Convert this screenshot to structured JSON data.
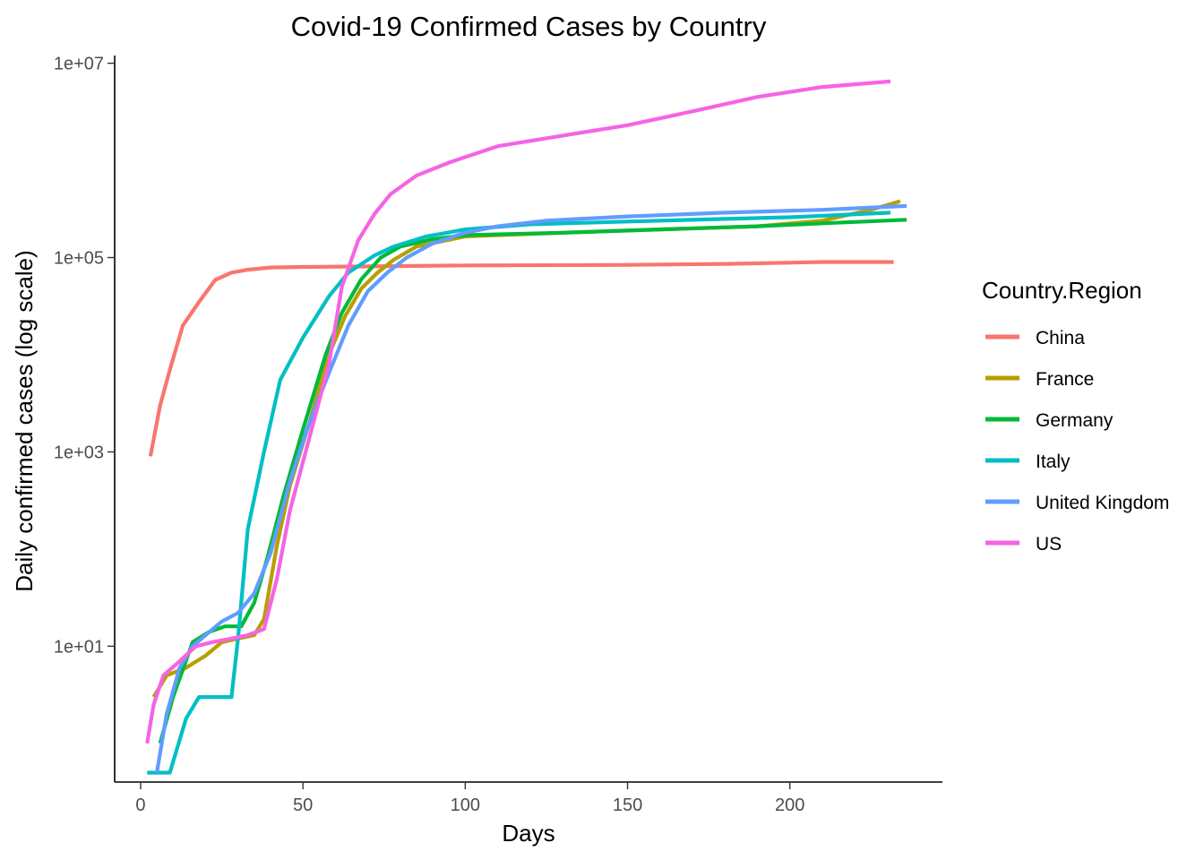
{
  "chart_data": {
    "type": "line",
    "title": "Covid-19 Confirmed Cases by Country",
    "xlabel": "Days",
    "ylabel": "Daily confirmed cases (log scale)",
    "y_scale": "log10",
    "xlim": [
      -8,
      247
    ],
    "ylim": [
      0.4,
      12000000
    ],
    "x_ticks": [
      0,
      50,
      100,
      150,
      200
    ],
    "x_tick_labels": [
      "0",
      "50",
      "100",
      "150",
      "200"
    ],
    "y_ticks": [
      10,
      1000,
      100000,
      10000000
    ],
    "y_tick_labels": [
      "1e+01",
      "1e+03",
      "1e+05",
      "1e+07"
    ],
    "grid": false,
    "legend": {
      "title": "Country.Region",
      "position": "right"
    },
    "series": [
      {
        "name": "China",
        "color": "#F8766D",
        "points": [
          [
            3,
            900
          ],
          [
            6,
            3000
          ],
          [
            9,
            7000
          ],
          [
            13,
            20000
          ],
          [
            18,
            35000
          ],
          [
            23,
            59000
          ],
          [
            28,
            70000
          ],
          [
            33,
            75000
          ],
          [
            40,
            79000
          ],
          [
            50,
            80000
          ],
          [
            70,
            81000
          ],
          [
            100,
            83000
          ],
          [
            150,
            84000
          ],
          [
            180,
            86000
          ],
          [
            210,
            90000
          ],
          [
            232,
            90000
          ]
        ]
      },
      {
        "name": "France",
        "color": "#B79F00",
        "points": [
          [
            4,
            3
          ],
          [
            8,
            5
          ],
          [
            14,
            6
          ],
          [
            20,
            8
          ],
          [
            25,
            11
          ],
          [
            30,
            12
          ],
          [
            35,
            13
          ],
          [
            38,
            19
          ],
          [
            42,
            110
          ],
          [
            46,
            450
          ],
          [
            52,
            2000
          ],
          [
            58,
            10000
          ],
          [
            63,
            25000
          ],
          [
            68,
            48000
          ],
          [
            73,
            70000
          ],
          [
            78,
            95000
          ],
          [
            85,
            130000
          ],
          [
            100,
            165000
          ],
          [
            130,
            180000
          ],
          [
            160,
            195000
          ],
          [
            190,
            210000
          ],
          [
            210,
            240000
          ],
          [
            225,
            310000
          ],
          [
            234,
            380000
          ]
        ]
      },
      {
        "name": "Germany",
        "color": "#00BA38",
        "points": [
          [
            6,
            1
          ],
          [
            10,
            3
          ],
          [
            16,
            11
          ],
          [
            21,
            14
          ],
          [
            26,
            16
          ],
          [
            31,
            16
          ],
          [
            35,
            28
          ],
          [
            39,
            80
          ],
          [
            44,
            350
          ],
          [
            50,
            1700
          ],
          [
            57,
            10000
          ],
          [
            62,
            27000
          ],
          [
            68,
            60000
          ],
          [
            74,
            100000
          ],
          [
            80,
            130000
          ],
          [
            90,
            155000
          ],
          [
            100,
            170000
          ],
          [
            130,
            180000
          ],
          [
            160,
            195000
          ],
          [
            190,
            210000
          ],
          [
            210,
            225000
          ],
          [
            236,
            245000
          ]
        ]
      },
      {
        "name": "Italy",
        "color": "#00BFC4",
        "points": [
          [
            2,
            0.5
          ],
          [
            6,
            0.5
          ],
          [
            9,
            0.5
          ],
          [
            14,
            1.8
          ],
          [
            18,
            3
          ],
          [
            23,
            3
          ],
          [
            28,
            3
          ],
          [
            30,
            12
          ],
          [
            33,
            160
          ],
          [
            38,
            1000
          ],
          [
            43,
            5500
          ],
          [
            50,
            15000
          ],
          [
            58,
            40000
          ],
          [
            64,
            70000
          ],
          [
            72,
            105000
          ],
          [
            78,
            130000
          ],
          [
            88,
            165000
          ],
          [
            100,
            195000
          ],
          [
            120,
            220000
          ],
          [
            150,
            235000
          ],
          [
            180,
            250000
          ],
          [
            200,
            260000
          ],
          [
            231,
            290000
          ]
        ]
      },
      {
        "name": "United Kingdom",
        "color": "#619CFF",
        "points": [
          [
            5,
            0.5
          ],
          [
            8,
            2
          ],
          [
            12,
            6
          ],
          [
            16,
            10
          ],
          [
            20,
            13
          ],
          [
            25,
            18
          ],
          [
            30,
            22
          ],
          [
            35,
            35
          ],
          [
            40,
            90
          ],
          [
            46,
            500
          ],
          [
            52,
            2000
          ],
          [
            58,
            6500
          ],
          [
            64,
            20000
          ],
          [
            70,
            45000
          ],
          [
            76,
            70000
          ],
          [
            82,
            100000
          ],
          [
            90,
            140000
          ],
          [
            100,
            180000
          ],
          [
            110,
            210000
          ],
          [
            125,
            240000
          ],
          [
            150,
            265000
          ],
          [
            180,
            290000
          ],
          [
            210,
            310000
          ],
          [
            236,
            340000
          ]
        ]
      },
      {
        "name": "US",
        "color": "#F564E3",
        "points": [
          [
            2,
            1
          ],
          [
            4,
            2.5
          ],
          [
            7,
            5
          ],
          [
            12,
            7
          ],
          [
            17,
            10
          ],
          [
            22,
            11
          ],
          [
            28,
            12
          ],
          [
            33,
            13
          ],
          [
            38,
            15
          ],
          [
            42,
            50
          ],
          [
            46,
            250
          ],
          [
            52,
            1400
          ],
          [
            58,
            8000
          ],
          [
            62,
            50000
          ],
          [
            67,
            150000
          ],
          [
            72,
            280000
          ],
          [
            77,
            450000
          ],
          [
            85,
            700000
          ],
          [
            95,
            950000
          ],
          [
            110,
            1400000
          ],
          [
            130,
            1800000
          ],
          [
            150,
            2300000
          ],
          [
            170,
            3200000
          ],
          [
            190,
            4500000
          ],
          [
            210,
            5700000
          ],
          [
            231,
            6500000
          ]
        ]
      }
    ]
  }
}
